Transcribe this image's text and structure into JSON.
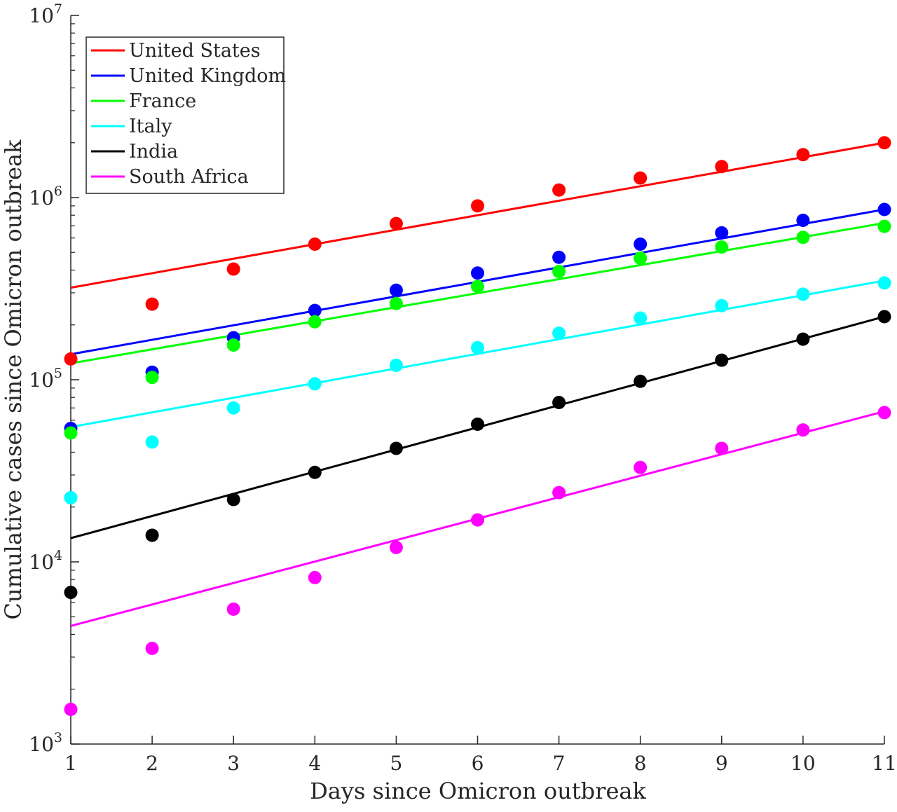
{
  "chart_data": {
    "type": "scatter",
    "title": "",
    "xlabel": "Days since Omicron outbreak",
    "ylabel": "Cumulative cases since Omicron outbreak",
    "xscale": "linear",
    "yscale": "log",
    "xlim": [
      1,
      11
    ],
    "ylim": [
      1000,
      10000000
    ],
    "x_ticks": [
      1,
      2,
      3,
      4,
      5,
      6,
      7,
      8,
      9,
      10,
      11
    ],
    "y_ticks": [
      {
        "base": "10",
        "exp": "3",
        "value": 1000
      },
      {
        "base": "10",
        "exp": "4",
        "value": 10000
      },
      {
        "base": "10",
        "exp": "5",
        "value": 100000
      },
      {
        "base": "10",
        "exp": "6",
        "value": 1000000
      },
      {
        "base": "10",
        "exp": "7",
        "value": 10000000
      }
    ],
    "grid": false,
    "legend_position": "top-left",
    "x": [
      1,
      2,
      3,
      4,
      5,
      6,
      7,
      8,
      9,
      10,
      11
    ],
    "series": [
      {
        "name": "United States",
        "color": "#ff0000",
        "points": [
          130000,
          260000,
          405000,
          555000,
          720000,
          900000,
          1100000,
          1280000,
          1480000,
          1720000,
          2000000
        ],
        "fit": [
          320000,
          2000000
        ]
      },
      {
        "name": "United Kingdom",
        "color": "#0000ff",
        "points": [
          54000,
          110000,
          170000,
          240000,
          310000,
          385000,
          470000,
          555000,
          640000,
          750000,
          860000
        ],
        "fit": [
          138000,
          860000
        ]
      },
      {
        "name": "France",
        "color": "#00ff00",
        "points": [
          51000,
          103000,
          155000,
          208000,
          262000,
          325000,
          393000,
          465000,
          535000,
          605000,
          695000
        ],
        "fit": [
          123000,
          725000
        ]
      },
      {
        "name": "Italy",
        "color": "#00ffff",
        "points": [
          22500,
          45500,
          70000,
          95000,
          120000,
          150000,
          180000,
          218000,
          255000,
          295000,
          340000
        ],
        "fit": [
          55000,
          350000
        ]
      },
      {
        "name": "India",
        "color": "#000000",
        "points": [
          6800,
          14000,
          22000,
          31000,
          42000,
          57000,
          75000,
          98000,
          128000,
          167000,
          222000
        ],
        "fit": [
          13500,
          222000
        ]
      },
      {
        "name": "South Africa",
        "color": "#ff00ff",
        "points": [
          1550,
          3350,
          5500,
          8200,
          12000,
          17000,
          24000,
          33000,
          42000,
          53000,
          66000
        ],
        "fit": [
          4450,
          67000
        ]
      }
    ]
  }
}
